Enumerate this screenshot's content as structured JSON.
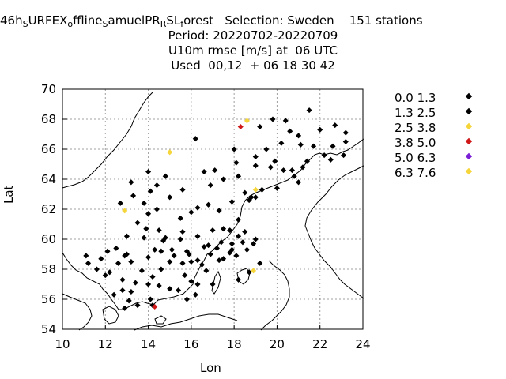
{
  "header": {
    "line1_parts": {
      "pre1": "46h",
      "sub1": "S",
      "mid1": "URFEX",
      "sub2": "o",
      "mid2": "ffline",
      "sub3": "S",
      "mid3": "amuelPR",
      "sub4": "R",
      "mid4": "SL",
      "sub5": "f",
      "mid5": "orest",
      "selection": "Selection: Sweden",
      "stations": "151 stations"
    },
    "period": "Period: 20220702-20220709",
    "parameter": "U10m rmse [m/s] at  06 UTC",
    "used": "Used  00,12  + 06 18 30 42"
  },
  "axes": {
    "xlabel": "Lon",
    "ylabel": "Lat"
  },
  "legend": [
    {
      "label": "0.0 1.3",
      "color": "#000000"
    },
    {
      "label": "1.3 2.5",
      "color": "#000000"
    },
    {
      "label": "2.5 3.8",
      "color": "#f5d53a"
    },
    {
      "label": "3.8 5.0",
      "color": "#d01818"
    },
    {
      "label": "5.0 6.3",
      "color": "#7a1fd6"
    },
    {
      "label": "6.3 7.6",
      "color": "#f5d53a"
    }
  ],
  "chart_data": {
    "type": "scatter",
    "xlim": [
      10,
      24
    ],
    "ylim": [
      54,
      70
    ],
    "xticks": [
      10,
      12,
      14,
      16,
      18,
      20,
      22,
      24
    ],
    "yticks": [
      54,
      56,
      58,
      60,
      62,
      64,
      66,
      68,
      70
    ],
    "grid": true,
    "legend_position": "right",
    "series": [
      {
        "name": "0.0 1.3",
        "color": "#000000",
        "points": [
          [
            21.5,
            68.6
          ],
          [
            19.8,
            68.0
          ],
          [
            20.4,
            67.9
          ],
          [
            22.7,
            67.6
          ],
          [
            22.0,
            67.3
          ],
          [
            19.2,
            67.5
          ],
          [
            20.6,
            67.2
          ],
          [
            21.0,
            66.9
          ],
          [
            23.2,
            67.1
          ],
          [
            20.2,
            66.4
          ],
          [
            21.1,
            66.3
          ],
          [
            21.7,
            66.2
          ],
          [
            22.6,
            66.2
          ],
          [
            18.0,
            66.0
          ],
          [
            19.5,
            66.0
          ],
          [
            23.2,
            66.5
          ],
          [
            19.0,
            65.5
          ],
          [
            19.9,
            65.2
          ],
          [
            21.4,
            65.2
          ],
          [
            22.2,
            65.6
          ],
          [
            22.5,
            65.3
          ],
          [
            23.1,
            65.6
          ],
          [
            20.7,
            64.6
          ],
          [
            16.2,
            66.7
          ],
          [
            19.0,
            64.9
          ],
          [
            19.7,
            64.8
          ],
          [
            20.3,
            64.6
          ],
          [
            18.1,
            65.1
          ],
          [
            17.1,
            64.6
          ],
          [
            16.6,
            64.5
          ],
          [
            18.2,
            64.2
          ],
          [
            17.5,
            64.0
          ],
          [
            16.9,
            63.6
          ],
          [
            18.5,
            63.1
          ],
          [
            19.3,
            63.3
          ],
          [
            20.0,
            63.4
          ],
          [
            21.0,
            63.8
          ],
          [
            18.7,
            62.6
          ],
          [
            17.9,
            62.5
          ],
          [
            16.8,
            62.3
          ],
          [
            16.3,
            62.1
          ],
          [
            15.6,
            63.3
          ],
          [
            14.1,
            63.2
          ],
          [
            14.4,
            63.6
          ],
          [
            14.8,
            64.2
          ],
          [
            14.0,
            64.5
          ],
          [
            13.8,
            62.4
          ],
          [
            13.3,
            62.9
          ],
          [
            14.4,
            62.0
          ],
          [
            14.0,
            61.7
          ],
          [
            15.0,
            62.8
          ],
          [
            16.0,
            61.8
          ],
          [
            17.3,
            61.9
          ],
          [
            18.8,
            62.8
          ],
          [
            18.2,
            61.3
          ],
          [
            17.0,
            60.6
          ],
          [
            17.8,
            60.6
          ],
          [
            18.5,
            60.5
          ],
          [
            19.0,
            60.0
          ],
          [
            18.9,
            59.7
          ],
          [
            18.4,
            59.8
          ],
          [
            17.4,
            59.8
          ],
          [
            16.8,
            59.6
          ],
          [
            16.3,
            60.2
          ],
          [
            15.6,
            60.5
          ],
          [
            15.5,
            61.4
          ],
          [
            14.5,
            60.6
          ],
          [
            13.5,
            61.1
          ],
          [
            13.0,
            60.2
          ],
          [
            13.8,
            60.1
          ],
          [
            14.7,
            59.9
          ],
          [
            14.3,
            59.3
          ],
          [
            15.1,
            59.3
          ],
          [
            15.8,
            59.2
          ],
          [
            16.6,
            59.5
          ],
          [
            17.2,
            59.4
          ],
          [
            17.9,
            59.3
          ],
          [
            18.6,
            59.3
          ],
          [
            18.1,
            58.9
          ],
          [
            17.5,
            58.7
          ],
          [
            16.3,
            58.6
          ],
          [
            16.0,
            58.5
          ],
          [
            15.6,
            58.4
          ],
          [
            15.0,
            58.5
          ],
          [
            14.6,
            58.0
          ],
          [
            14.2,
            57.5
          ],
          [
            13.7,
            57.9
          ],
          [
            13.2,
            58.5
          ],
          [
            12.9,
            58.9
          ],
          [
            12.6,
            58.4
          ],
          [
            12.2,
            57.8
          ],
          [
            12.0,
            57.6
          ],
          [
            11.6,
            58.0
          ],
          [
            11.2,
            58.4
          ],
          [
            11.1,
            58.9
          ],
          [
            12.1,
            59.2
          ],
          [
            12.5,
            59.4
          ],
          [
            13.0,
            59.0
          ],
          [
            14.0,
            58.8
          ],
          [
            15.2,
            58.9
          ],
          [
            16.7,
            57.9
          ],
          [
            16.3,
            57.0
          ],
          [
            15.4,
            56.6
          ],
          [
            15.0,
            56.7
          ],
          [
            14.5,
            56.9
          ],
          [
            14.0,
            57.0
          ],
          [
            13.2,
            56.5
          ],
          [
            12.8,
            56.6
          ],
          [
            12.4,
            56.3
          ],
          [
            12.9,
            55.4
          ],
          [
            13.1,
            55.9
          ],
          [
            13.5,
            55.6
          ],
          [
            14.2,
            55.6
          ],
          [
            14.1,
            56.0
          ],
          [
            15.8,
            56.0
          ],
          [
            16.2,
            56.3
          ],
          [
            15.7,
            57.6
          ],
          [
            16.0,
            57.2
          ],
          [
            17.0,
            57.0
          ],
          [
            18.2,
            57.3
          ],
          [
            18.7,
            57.8
          ],
          [
            19.2,
            58.4
          ],
          [
            17.9,
            59.7
          ],
          [
            16.9,
            59.0
          ],
          [
            17.8,
            59.1
          ],
          [
            18.2,
            60.2
          ],
          [
            14.8,
            60.1
          ],
          [
            17.5,
            60.7
          ],
          [
            19.0,
            62.8
          ],
          [
            20.8,
            64.2
          ],
          [
            21.2,
            64.8
          ],
          [
            13.2,
            63.8
          ],
          [
            12.7,
            62.4
          ],
          [
            13.9,
            60.7
          ],
          [
            15.9,
            59.0
          ],
          [
            17.3,
            58.6
          ],
          [
            16.5,
            58.3
          ],
          [
            12.8,
            57.3
          ],
          [
            11.8,
            58.7
          ],
          [
            13.4,
            57.1
          ],
          [
            14.6,
            59.2
          ],
          [
            15.5,
            60.0
          ]
        ]
      },
      {
        "name": "2.5 3.8",
        "color": "#f5d53a",
        "points": [
          [
            18.6,
            67.9
          ],
          [
            15.0,
            65.8
          ],
          [
            12.9,
            61.9
          ],
          [
            19.0,
            63.3
          ],
          [
            18.9,
            57.9
          ]
        ]
      },
      {
        "name": "3.8 5.0",
        "color": "#d01818",
        "points": [
          [
            18.3,
            67.5
          ],
          [
            14.3,
            55.5
          ]
        ]
      }
    ]
  }
}
